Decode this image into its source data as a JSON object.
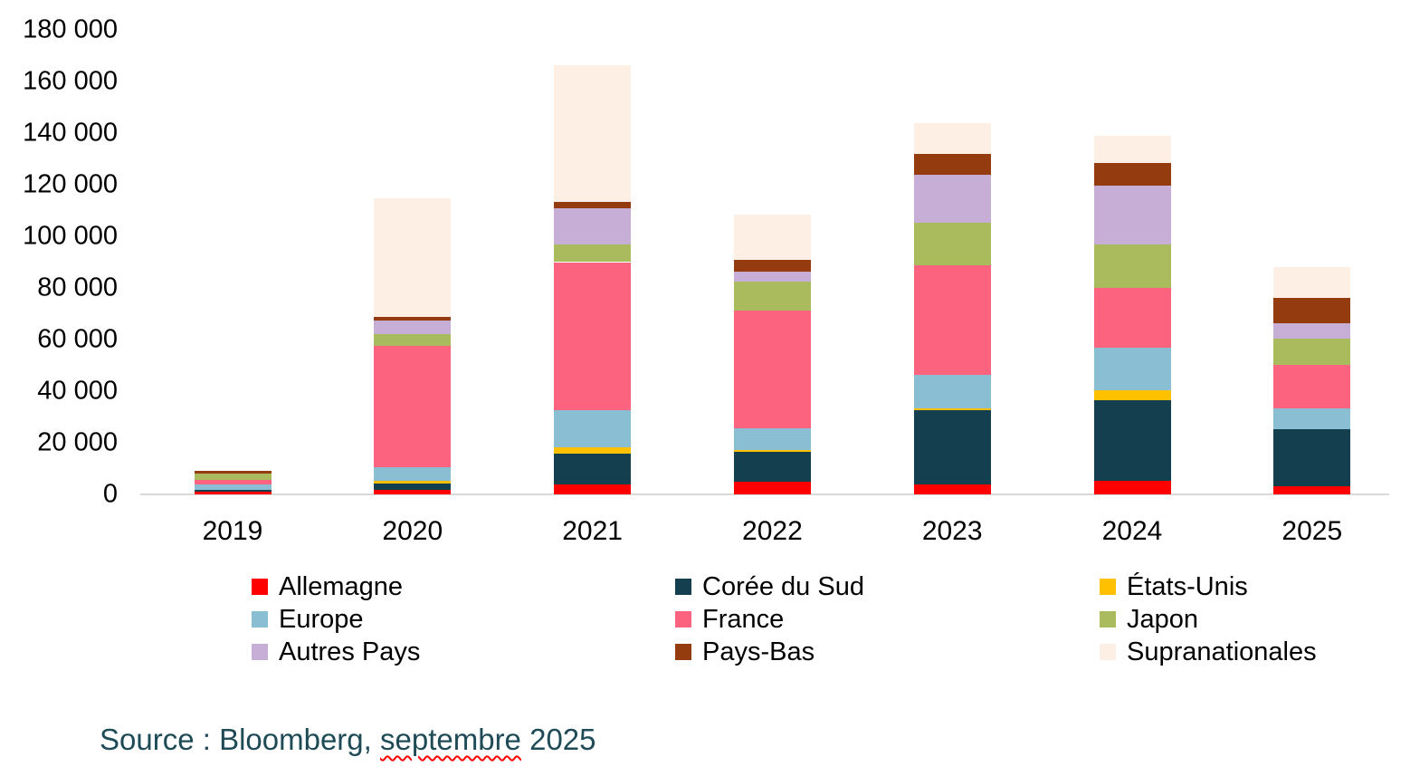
{
  "chart_data": {
    "type": "bar",
    "stacked": true,
    "title": "",
    "xlabel": "",
    "ylabel": "",
    "categories": [
      "2019",
      "2020",
      "2021",
      "2022",
      "2023",
      "2024",
      "2025"
    ],
    "series": [
      {
        "name": "Allemagne",
        "color": "#ff0000",
        "values": [
          1200,
          1700,
          3800,
          4800,
          3900,
          5400,
          3100
        ]
      },
      {
        "name": "Corée du Sud",
        "color": "#133f4f",
        "values": [
          700,
          2600,
          12000,
          11700,
          28800,
          31000,
          22300
        ]
      },
      {
        "name": "États-Unis",
        "color": "#ffc000",
        "values": [
          0,
          1000,
          2600,
          800,
          800,
          3900,
          0
        ]
      },
      {
        "name": "Europe",
        "color": "#8abfd3",
        "values": [
          2000,
          5200,
          14200,
          8200,
          12900,
          16400,
          7900
        ]
      },
      {
        "name": "France",
        "color": "#fb637e",
        "values": [
          1800,
          47000,
          57400,
          45600,
          42300,
          23400,
          16900
        ]
      },
      {
        "name": "Japon",
        "color": "#a9bb5d",
        "values": [
          2300,
          4700,
          7000,
          11200,
          16400,
          16600,
          10000
        ]
      },
      {
        "name": "Autres Pays",
        "color": "#c6aed6",
        "values": [
          0,
          5300,
          13800,
          4100,
          18700,
          22800,
          6200
        ]
      },
      {
        "name": "Pays-Bas",
        "color": "#943c10",
        "values": [
          1200,
          1400,
          2600,
          4600,
          8200,
          9000,
          9600
        ]
      },
      {
        "name": "Supranationales",
        "color": "#fdefe4",
        "values": [
          0,
          46000,
          53000,
          17300,
          11700,
          10300,
          12000
        ]
      }
    ],
    "ylim": [
      0,
      180000
    ],
    "ytick_step": 20000,
    "ytick_labels": [
      "0",
      "20 000",
      "40 000",
      "60 000",
      "80 000",
      "100 000",
      "120 000",
      "140 000",
      "160 000",
      "180 000"
    ],
    "grid": false,
    "legend_position": "bottom"
  },
  "legend": {
    "items": [
      {
        "label": "Allemagne",
        "color": "#ff0000"
      },
      {
        "label": "Corée du Sud",
        "color": "#133f4f"
      },
      {
        "label": "États-Unis",
        "color": "#ffc000"
      },
      {
        "label": "Europe",
        "color": "#8abfd3"
      },
      {
        "label": "France",
        "color": "#fb637e"
      },
      {
        "label": "Japon",
        "color": "#a9bb5d"
      },
      {
        "label": "Autres Pays",
        "color": "#c6aed6"
      },
      {
        "label": "Pays-Bas",
        "color": "#943c10"
      },
      {
        "label": "Supranationales",
        "color": "#fdefe4"
      }
    ]
  },
  "source": {
    "prefix": "Source : Bloomberg, ",
    "underlined": "septembre",
    "suffix": " 2025"
  }
}
